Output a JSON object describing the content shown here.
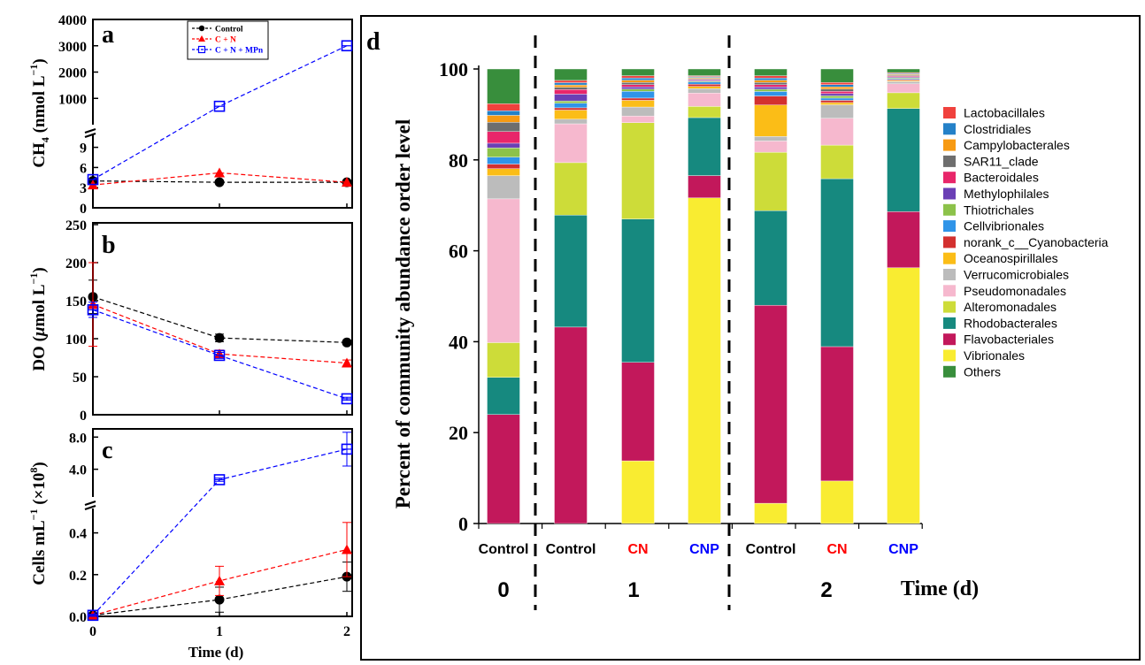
{
  "chart_data": [
    {
      "panel": "a",
      "type": "line",
      "ylabel_main": "CH",
      "ylabel_sub": "4",
      "ylabel_unit": " (nmol L",
      "ylabel_exp": "−1",
      "ylabel_close": ")",
      "x": [
        0,
        1,
        2
      ],
      "xticks": [
        "0",
        "1",
        "2"
      ],
      "axis_broken": true,
      "y_lower_ticks": [
        "0",
        "3",
        "6",
        "9"
      ],
      "y_lower_range": [
        0,
        10
      ],
      "y_upper_ticks": [
        "1000",
        "2000",
        "3000",
        "4000"
      ],
      "y_upper_range": [
        0,
        4000
      ],
      "legend": [
        "Control",
        "C + N",
        "C + N + MPn"
      ],
      "series": [
        {
          "name": "Control",
          "color": "#000000",
          "marker": "circle",
          "values": [
            4.0,
            3.8,
            3.8
          ]
        },
        {
          "name": "C + N",
          "color": "#ff0000",
          "marker": "triangle",
          "values": [
            3.4,
            5.2,
            3.8
          ]
        },
        {
          "name": "C + N + MPn",
          "color": "#0000ff",
          "marker": "square",
          "values": [
            4.2,
            700,
            3000
          ]
        }
      ]
    },
    {
      "panel": "b",
      "type": "line",
      "ylabel_pre": "DO (",
      "ylabel_greek": "μ",
      "ylabel_unit": "mol L",
      "ylabel_exp": "−1",
      "ylabel_close": ")",
      "x": [
        0,
        1,
        2
      ],
      "ylim": [
        0,
        250
      ],
      "yticks": [
        "0",
        "50",
        "100",
        "150",
        "200",
        "250"
      ],
      "series": [
        {
          "name": "Control",
          "color": "#000000",
          "marker": "circle",
          "values": [
            155,
            101,
            95
          ],
          "err": [
            22,
            5,
            3
          ]
        },
        {
          "name": "C + N",
          "color": "#ff0000",
          "marker": "triangle",
          "values": [
            145,
            80,
            68
          ],
          "err": [
            55,
            5,
            4
          ]
        },
        {
          "name": "C + N + MPn",
          "color": "#0000ff",
          "marker": "square",
          "values": [
            138,
            78,
            21
          ],
          "err": [
            10,
            4,
            2
          ]
        }
      ]
    },
    {
      "panel": "c",
      "type": "line",
      "ylabel_pre": "Cells mL",
      "ylabel_exp": "−1",
      "ylabel_mid": " (×10",
      "ylabel_exp2": "8",
      "ylabel_close": ")",
      "xlabel": "Time (d)",
      "x": [
        0,
        1,
        2
      ],
      "xticks": [
        "0",
        "1",
        "2"
      ],
      "axis_broken": true,
      "y_lower_ticks": [
        "0.0",
        "0.2",
        "0.4"
      ],
      "y_lower_range": [
        0,
        0.5
      ],
      "y_upper_ticks": [
        "4.0",
        "8.0"
      ],
      "y_upper_range": [
        0,
        8.8
      ],
      "series": [
        {
          "name": "Control",
          "color": "#000000",
          "marker": "circle",
          "values": [
            0.005,
            0.08,
            0.19
          ],
          "err": [
            0.005,
            0.06,
            0.07
          ]
        },
        {
          "name": "C + N",
          "color": "#ff0000",
          "marker": "triangle",
          "values": [
            0.005,
            0.17,
            0.32
          ],
          "err": [
            0.005,
            0.07,
            0.13
          ]
        },
        {
          "name": "C + N + MPn",
          "color": "#0000ff",
          "marker": "square",
          "values": [
            0.005,
            2.7,
            6.5
          ],
          "err": [
            0.005,
            0.2,
            2.1
          ]
        }
      ]
    },
    {
      "panel": "d",
      "type": "bar",
      "stacked": true,
      "ylabel": "Percent of community abundance order level",
      "xlabel": "Time (d)",
      "ylim": [
        0,
        100
      ],
      "yticks": [
        "0",
        "20",
        "40",
        "60",
        "80",
        "100"
      ],
      "categories": [
        "Control",
        "Control",
        "CN",
        "CNP",
        "Control",
        "CN",
        "CNP"
      ],
      "category_colors": [
        "#000000",
        "#000000",
        "#ff0000",
        "#0000ff",
        "#000000",
        "#ff0000",
        "#0000ff"
      ],
      "time_groups": [
        {
          "label": "0",
          "bars": [
            0
          ]
        },
        {
          "label": "1",
          "bars": [
            1,
            2,
            3
          ]
        },
        {
          "label": "2",
          "bars": [
            4,
            5,
            6
          ]
        }
      ],
      "legend": [
        {
          "name": "Lactobacillales",
          "color": "#f0413d"
        },
        {
          "name": "Clostridiales",
          "color": "#2481c8"
        },
        {
          "name": "Campylobacterales",
          "color": "#f79a13"
        },
        {
          "name": "SAR11_clade",
          "color": "#6e6e6e"
        },
        {
          "name": "Bacteroidales",
          "color": "#e8266a"
        },
        {
          "name": "Methylophilales",
          "color": "#6a3fb5"
        },
        {
          "name": "Thiotrichales",
          "color": "#8cc24a"
        },
        {
          "name": "Cellvibrionales",
          "color": "#2f94e8"
        },
        {
          "name": "norank_c__Cyanobacteria",
          "color": "#d3302f"
        },
        {
          "name": "Oceanospirillales",
          "color": "#fbbd17"
        },
        {
          "name": "Verrucomicrobiales",
          "color": "#bcbcbc"
        },
        {
          "name": "Pseudomonadales",
          "color": "#f6b8ce"
        },
        {
          "name": "Alteromonadales",
          "color": "#cddc39"
        },
        {
          "name": "Rhodobacterales",
          "color": "#16897f"
        },
        {
          "name": "Flavobacteriales",
          "color": "#c2185b"
        },
        {
          "name": "Vibrionales",
          "color": "#f9ec31"
        },
        {
          "name": "Others",
          "color": "#388e3c"
        }
      ],
      "series": [
        {
          "name": "Vibrionales",
          "values": [
            0,
            0,
            14,
            73,
            4.5,
            9.5,
            57
          ]
        },
        {
          "name": "Flavobacteriales",
          "values": [
            23.5,
            43,
            22,
            5,
            44,
            30,
            12.5
          ]
        },
        {
          "name": "Rhodobacterales",
          "values": [
            8,
            24.5,
            32,
            13,
            21,
            37.5,
            23
          ]
        },
        {
          "name": "Alteromonadales",
          "values": [
            7.5,
            11.5,
            21.5,
            2.5,
            13,
            7.5,
            3.5
          ]
        },
        {
          "name": "Pseudomonadales",
          "values": [
            31,
            8.5,
            1.5,
            3,
            2.5,
            6,
            2
          ]
        },
        {
          "name": "Verrucomicrobiales",
          "values": [
            5,
            1,
            2,
            1,
            1,
            3,
            0.5
          ]
        },
        {
          "name": "Oceanospirillales",
          "values": [
            1.5,
            2,
            1.5,
            0.5,
            7,
            0.5,
            0.2
          ]
        },
        {
          "name": "norank_c__Cyanobacteria",
          "values": [
            1,
            0.5,
            0.5,
            0.5,
            2,
            0.5,
            0.2
          ]
        },
        {
          "name": "Cellvibrionales",
          "values": [
            1.5,
            1,
            1.5,
            0.5,
            1,
            0.5,
            0.2
          ]
        },
        {
          "name": "Thiotrichales",
          "values": [
            2,
            0.5,
            0.5,
            0.2,
            0.5,
            0.5,
            0.2
          ]
        },
        {
          "name": "Methylophilales",
          "values": [
            1,
            1.5,
            0.5,
            0.2,
            0.5,
            0.5,
            0.2
          ]
        },
        {
          "name": "Bacteroidales",
          "values": [
            2.5,
            1,
            0.5,
            0.2,
            0.5,
            0.5,
            0.2
          ]
        },
        {
          "name": "SAR11_clade",
          "values": [
            2,
            0.5,
            0.5,
            0.2,
            0.5,
            0.5,
            0.2
          ]
        },
        {
          "name": "Campylobacterales",
          "values": [
            1.5,
            0.5,
            0.5,
            0.2,
            0.5,
            0.5,
            0.2
          ]
        },
        {
          "name": "Clostridiales",
          "values": [
            1,
            0.5,
            0.5,
            0.2,
            0.5,
            0.5,
            0.2
          ]
        },
        {
          "name": "Lactobacillales",
          "values": [
            1.5,
            0.5,
            0.5,
            0.2,
            0.5,
            0.5,
            0.2
          ]
        },
        {
          "name": "Others",
          "values": [
            7.5,
            2.5,
            1.5,
            1.5,
            1.5,
            3,
            0.8
          ]
        }
      ]
    }
  ]
}
